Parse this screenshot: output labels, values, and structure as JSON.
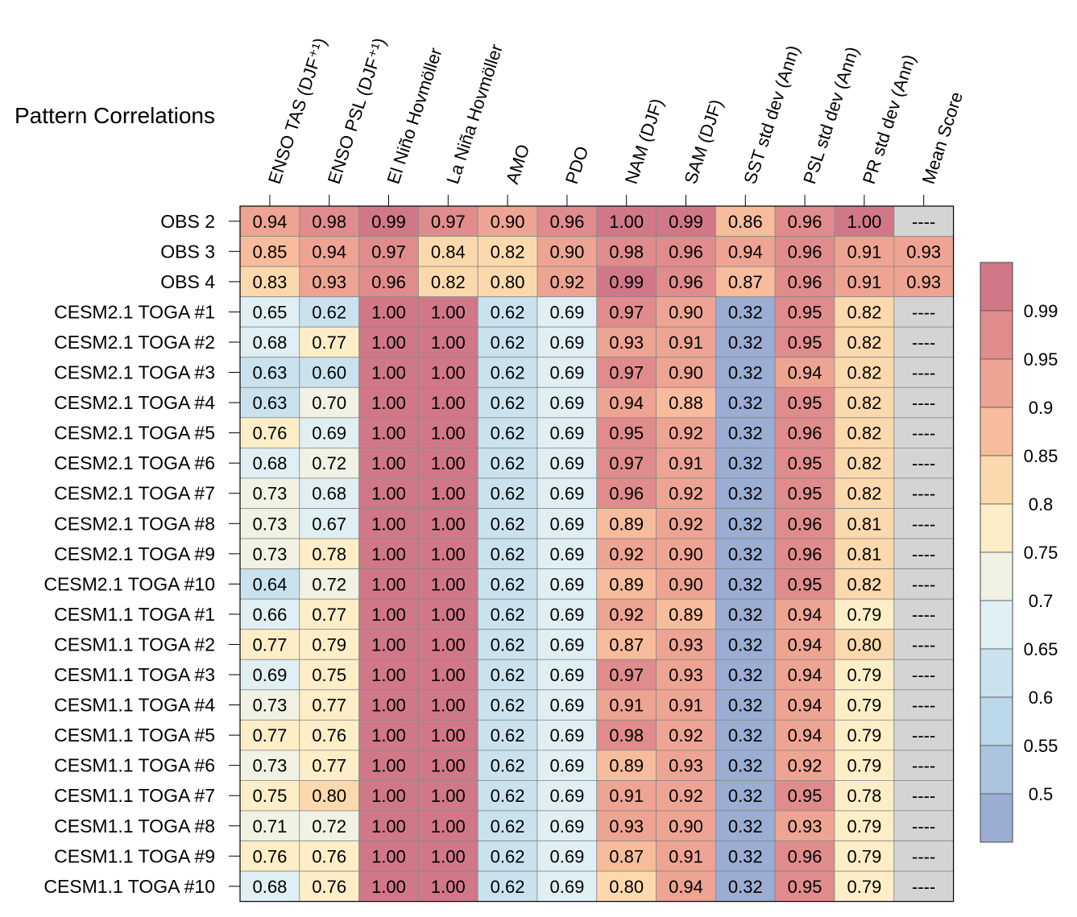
{
  "chart_data": {
    "type": "heatmap",
    "title": "Pattern Correlations",
    "columns": [
      "ENSO TAS (DJF⁺¹)",
      "ENSO PSL (DJF⁺¹)",
      "El Niño Hovmöller",
      "La Niña Hovmöller",
      "AMO",
      "PDO",
      "NAM (DJF)",
      "SAM (DJF)",
      "SST std dev (Ann)",
      "PSL std dev (Ann)",
      "PR std dev (Ann)",
      "Mean Score"
    ],
    "rows": [
      "OBS 2",
      "OBS 3",
      "OBS 4",
      "CESM2.1 TOGA #1",
      "CESM2.1 TOGA #2",
      "CESM2.1 TOGA #3",
      "CESM2.1 TOGA #4",
      "CESM2.1 TOGA #5",
      "CESM2.1 TOGA #6",
      "CESM2.1 TOGA #7",
      "CESM2.1 TOGA #8",
      "CESM2.1 TOGA #9",
      "CESM2.1 TOGA #10",
      "CESM1.1 TOGA #1",
      "CESM1.1 TOGA #2",
      "CESM1.1 TOGA #3",
      "CESM1.1 TOGA #4",
      "CESM1.1 TOGA #5",
      "CESM1.1 TOGA #6",
      "CESM1.1 TOGA #7",
      "CESM1.1 TOGA #8",
      "CESM1.1 TOGA #9",
      "CESM1.1 TOGA #10"
    ],
    "values": [
      [
        "0.94",
        "0.98",
        "0.99",
        "0.97",
        "0.90",
        "0.96",
        "1.00",
        "0.99",
        "0.86",
        "0.96",
        "1.00",
        "----"
      ],
      [
        "0.85",
        "0.94",
        "0.97",
        "0.84",
        "0.82",
        "0.90",
        "0.98",
        "0.96",
        "0.94",
        "0.96",
        "0.91",
        "0.93"
      ],
      [
        "0.83",
        "0.93",
        "0.96",
        "0.82",
        "0.80",
        "0.92",
        "0.99",
        "0.96",
        "0.87",
        "0.96",
        "0.91",
        "0.93"
      ],
      [
        "0.65",
        "0.62",
        "1.00",
        "1.00",
        "0.62",
        "0.69",
        "0.97",
        "0.90",
        "0.32",
        "0.95",
        "0.82",
        "----"
      ],
      [
        "0.68",
        "0.77",
        "1.00",
        "1.00",
        "0.62",
        "0.69",
        "0.93",
        "0.91",
        "0.32",
        "0.95",
        "0.82",
        "----"
      ],
      [
        "0.63",
        "0.60",
        "1.00",
        "1.00",
        "0.62",
        "0.69",
        "0.97",
        "0.90",
        "0.32",
        "0.94",
        "0.82",
        "----"
      ],
      [
        "0.63",
        "0.70",
        "1.00",
        "1.00",
        "0.62",
        "0.69",
        "0.94",
        "0.88",
        "0.32",
        "0.95",
        "0.82",
        "----"
      ],
      [
        "0.76",
        "0.69",
        "1.00",
        "1.00",
        "0.62",
        "0.69",
        "0.95",
        "0.92",
        "0.32",
        "0.96",
        "0.82",
        "----"
      ],
      [
        "0.68",
        "0.72",
        "1.00",
        "1.00",
        "0.62",
        "0.69",
        "0.97",
        "0.91",
        "0.32",
        "0.95",
        "0.82",
        "----"
      ],
      [
        "0.73",
        "0.68",
        "1.00",
        "1.00",
        "0.62",
        "0.69",
        "0.96",
        "0.92",
        "0.32",
        "0.95",
        "0.82",
        "----"
      ],
      [
        "0.73",
        "0.67",
        "1.00",
        "1.00",
        "0.62",
        "0.69",
        "0.89",
        "0.92",
        "0.32",
        "0.96",
        "0.81",
        "----"
      ],
      [
        "0.73",
        "0.78",
        "1.00",
        "1.00",
        "0.62",
        "0.69",
        "0.92",
        "0.90",
        "0.32",
        "0.96",
        "0.81",
        "----"
      ],
      [
        "0.64",
        "0.72",
        "1.00",
        "1.00",
        "0.62",
        "0.69",
        "0.89",
        "0.90",
        "0.32",
        "0.95",
        "0.82",
        "----"
      ],
      [
        "0.66",
        "0.77",
        "1.00",
        "1.00",
        "0.62",
        "0.69",
        "0.92",
        "0.89",
        "0.32",
        "0.94",
        "0.79",
        "----"
      ],
      [
        "0.77",
        "0.79",
        "1.00",
        "1.00",
        "0.62",
        "0.69",
        "0.87",
        "0.93",
        "0.32",
        "0.94",
        "0.80",
        "----"
      ],
      [
        "0.69",
        "0.75",
        "1.00",
        "1.00",
        "0.62",
        "0.69",
        "0.97",
        "0.93",
        "0.32",
        "0.94",
        "0.79",
        "----"
      ],
      [
        "0.73",
        "0.77",
        "1.00",
        "1.00",
        "0.62",
        "0.69",
        "0.91",
        "0.91",
        "0.32",
        "0.94",
        "0.79",
        "----"
      ],
      [
        "0.77",
        "0.76",
        "1.00",
        "1.00",
        "0.62",
        "0.69",
        "0.98",
        "0.92",
        "0.32",
        "0.94",
        "0.79",
        "----"
      ],
      [
        "0.73",
        "0.77",
        "1.00",
        "1.00",
        "0.62",
        "0.69",
        "0.89",
        "0.93",
        "0.32",
        "0.92",
        "0.79",
        "----"
      ],
      [
        "0.75",
        "0.80",
        "1.00",
        "1.00",
        "0.62",
        "0.69",
        "0.91",
        "0.92",
        "0.32",
        "0.95",
        "0.78",
        "----"
      ],
      [
        "0.71",
        "0.72",
        "1.00",
        "1.00",
        "0.62",
        "0.69",
        "0.93",
        "0.90",
        "0.32",
        "0.93",
        "0.79",
        "----"
      ],
      [
        "0.76",
        "0.76",
        "1.00",
        "1.00",
        "0.62",
        "0.69",
        "0.87",
        "0.91",
        "0.32",
        "0.96",
        "0.79",
        "----"
      ],
      [
        "0.68",
        "0.76",
        "1.00",
        "1.00",
        "0.62",
        "0.69",
        "0.80",
        "0.94",
        "0.32",
        "0.95",
        "0.79",
        "----"
      ]
    ],
    "colorbar": {
      "tick_labels": [
        "0.99",
        "0.95",
        "0.9",
        "0.85",
        "0.8",
        "0.75",
        "0.7",
        "0.65",
        "0.6",
        "0.55",
        "0.5"
      ],
      "colors": [
        "#d17888",
        "#e08c8c",
        "#eea493",
        "#f6bc9c",
        "#fcd9ad",
        "#fdeec7",
        "#f1f1e4",
        "#e0eff3",
        "#c9e2ed",
        "#bad8e9",
        "#acc4df",
        "#9badd3"
      ]
    },
    "missing_color": "#d4d4d4"
  }
}
